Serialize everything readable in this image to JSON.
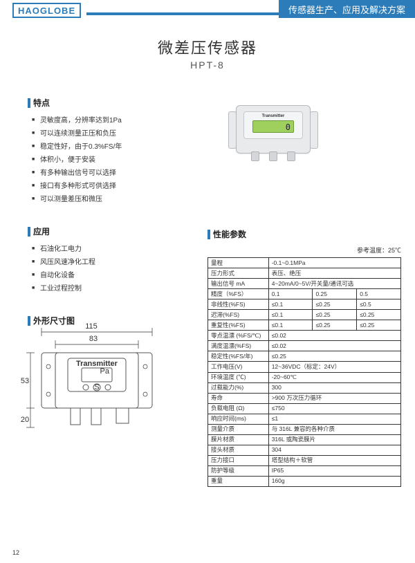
{
  "header": {
    "logo": "HAOGLOBE",
    "subtitle": "传感器生产、应用及解决方案"
  },
  "title": {
    "main": "微差压传感器",
    "sub": "HPT-8"
  },
  "device_label": "Transmitter",
  "device_reading": "0",
  "sections": {
    "features": "特点",
    "applications": "应用",
    "dimensions": "外形尺寸图",
    "specs": "性能参数"
  },
  "features": [
    "灵敏度高，分辨率达到1Pa",
    "可以连续测量正压和负压",
    "稳定性好，由于0.3%FS/年",
    "体积小，便于安装",
    "有多种输出信号可以选择",
    "接口有多种形式可供选择",
    "可以测量差压和微压"
  ],
  "applications": [
    "石油化工电力",
    "风压风速净化工程",
    "自动化设备",
    "工业过程控制"
  ],
  "dimensions": {
    "w_outer": "115",
    "w_inner": "83",
    "h_body": "53",
    "h_port": "20"
  },
  "spec_note": "参考温度：25℃",
  "specs_simple": [
    [
      "量程",
      "-0.1~0.1MPa"
    ],
    [
      "压力形式",
      "表压、绝压"
    ],
    [
      "输出信号 mA",
      "4~20mA/0~5V/开关量/通讯可选"
    ]
  ],
  "specs_tri": [
    [
      "精度（%FS）",
      "0.1",
      "0.25",
      "0.5"
    ],
    [
      "非线性(%FS)",
      "≤0.1",
      "≤0.25",
      "≤0.5"
    ],
    [
      "迟滞(%FS)",
      "≤0.1",
      "≤0.25",
      "≤0.25"
    ],
    [
      "重复性(%FS)",
      "≤0.1",
      "≤0.25",
      "≤0.25"
    ]
  ],
  "specs_tail": [
    [
      "零点温漂 (%FS/℃)",
      "≤0.02"
    ],
    [
      "满度温漂(%FS)",
      "≤0.02"
    ],
    [
      "稳定性(%FS/年)",
      "≤0.25"
    ],
    [
      "工作电压(V)",
      "12~36VDC（标定：24V）"
    ],
    [
      "环境温度 (℃)",
      "-20~60℃"
    ],
    [
      "过载能力(%)",
      "300"
    ],
    [
      "寿命",
      ">900 万次压力循环"
    ],
    [
      "负载电阻 (Ω)",
      "≤750"
    ],
    [
      "响应时间(ms)",
      "≤1"
    ],
    [
      "测量介质",
      "与 316L 兼容的各种介质"
    ],
    [
      "膜片材质",
      "316L 或陶瓷膜片"
    ],
    [
      "接头材质",
      "304"
    ],
    [
      "压力接口",
      "塔型结构＋软管"
    ],
    [
      "防护等级",
      "IP65"
    ],
    [
      "重量",
      "160g"
    ]
  ],
  "page_number": "12",
  "colors": {
    "brand": "#2b7cb8"
  }
}
